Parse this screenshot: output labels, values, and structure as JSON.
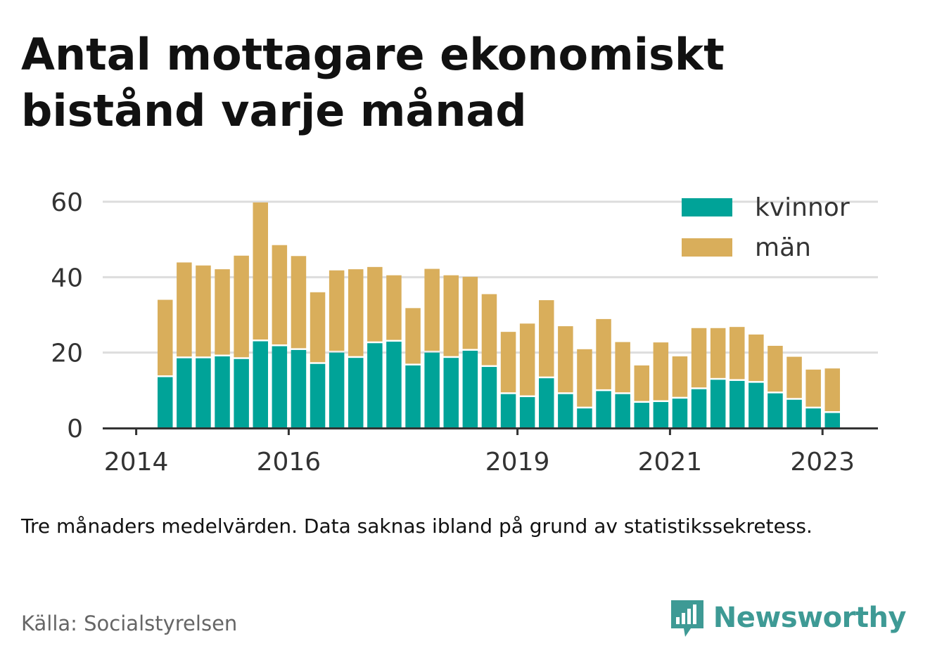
{
  "title": "Antal mottagare ekonomiskt bistånd varje månad",
  "note": "Tre månaders medelvärden. Data saknas ibland på grund av statistikssekretess.",
  "source": "Källa: Socialstyrelsen",
  "brand": {
    "name": "Newsworthy",
    "icon": "newsworthy-logo-icon"
  },
  "colors": {
    "kvinnor": "#00a398",
    "man": "#d9ae5b",
    "axis": "#333333",
    "grid": "#dddddd"
  },
  "chart_data": {
    "type": "bar",
    "stacked": true,
    "x_ticks": [
      {
        "label": "2014",
        "bar_index": -1
      },
      {
        "label": "2016",
        "bar_index": 7
      },
      {
        "label": "2019",
        "bar_index": 19
      },
      {
        "label": "2021",
        "bar_index": 27
      },
      {
        "label": "2023",
        "bar_index": 35
      }
    ],
    "y_ticks": [
      0,
      20,
      40,
      60
    ],
    "ylim": [
      0,
      60
    ],
    "legend_position": "top-right",
    "grid": true,
    "series": [
      {
        "name": "kvinnor",
        "values": [
          13.5,
          18.5,
          18.5,
          19,
          18.3,
          23,
          21.7,
          20.7,
          17,
          20,
          18.6,
          22.5,
          22.9,
          16.6,
          20,
          18.6,
          20.5,
          16.2,
          9,
          8.2,
          13.2,
          9,
          5.2,
          9.8,
          9,
          6.7,
          6.9,
          7.8,
          10.3,
          12.8,
          12.5,
          12,
          9.2,
          7.5,
          5.2,
          4
        ]
      },
      {
        "name": "män",
        "values": [
          20.5,
          25.4,
          24.6,
          23.1,
          27.4,
          36.8,
          26.8,
          24.9,
          19,
          21.8,
          23.5,
          20.2,
          17.6,
          15.2,
          22.2,
          21.9,
          19.6,
          19.3,
          16.5,
          19.5,
          20.7,
          18,
          15.7,
          19.1,
          13.8,
          9.9,
          15.8,
          11.2,
          16.2,
          13.7,
          14.3,
          12.8,
          12.6,
          11.4,
          10.3,
          11.8
        ]
      }
    ]
  }
}
